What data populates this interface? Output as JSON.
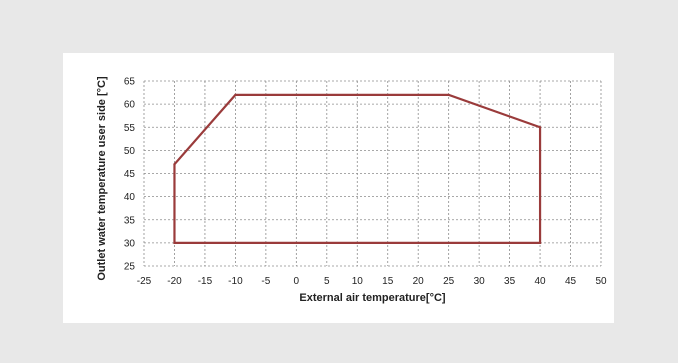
{
  "colors": {
    "page_background": "#e8e8e8",
    "panel_background": "#ffffff",
    "envelope_line": "#9a3b3b",
    "grid": "#8c8c8c"
  },
  "chart_data": {
    "type": "line",
    "title": "",
    "xlabel": "External air temperature[°C]",
    "ylabel": "Outlet water temperature user side [°C]",
    "xlim": [
      -25,
      50
    ],
    "ylim": [
      25,
      65
    ],
    "xticks": [
      -25,
      -20,
      -15,
      -10,
      -5,
      0,
      5,
      10,
      15,
      20,
      25,
      30,
      35,
      40,
      45,
      50
    ],
    "yticks": [
      25,
      30,
      35,
      40,
      45,
      50,
      55,
      60,
      65
    ],
    "grid": true,
    "grid_style": "dashed",
    "legend": "none",
    "series": [
      {
        "color": "#9a3b3b",
        "closed": true,
        "points": [
          {
            "x": -20,
            "y": 30
          },
          {
            "x": -20,
            "y": 47
          },
          {
            "x": -10,
            "y": 62
          },
          {
            "x": 25,
            "y": 62
          },
          {
            "x": 40,
            "y": 55
          },
          {
            "x": 40,
            "y": 30
          }
        ]
      }
    ]
  }
}
